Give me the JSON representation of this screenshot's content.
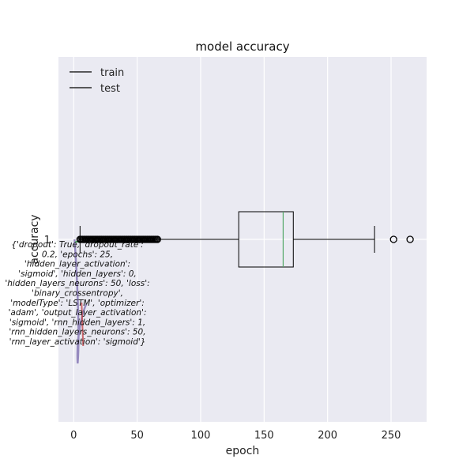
{
  "chart_data": {
    "type": "boxplot",
    "title": "model accuracy",
    "xlabel": "epoch",
    "ylabel": "accuracy",
    "xlim": [
      -12,
      278
    ],
    "xticks": [
      0,
      50,
      100,
      150,
      200,
      250
    ],
    "yticks": [
      1
    ],
    "grid": true,
    "legend": {
      "placement": "top-left",
      "entries": [
        "train",
        "test"
      ]
    },
    "box": {
      "category": 1,
      "whisker_low": 5,
      "q1": 130,
      "median": 165,
      "q3": 173,
      "whisker_high": 237,
      "outliers_high": [
        252,
        265
      ],
      "outliers_low_range": [
        5,
        66
      ]
    },
    "colors": {
      "background": "#eaeaf2",
      "grid": "#ffffff",
      "box": "#000000",
      "median": "#55a868",
      "train": "#4c72b0",
      "test": "#c44e52",
      "purple": "#8172b2"
    },
    "annotation_lines": [
      "{'dropout': True, 'dropout_rate':",
      "0.2, 'epochs': 25,",
      "'hidden_layer_activation':",
      "'sigmoid', 'hidden_layers': 0,",
      "'hidden_layers_neurons': 50, 'loss':",
      "'binary_crossentropy',",
      "'modelType': 'LSTM', 'optimizer':",
      "'adam', 'output_layer_activation':",
      "'sigmoid', 'rnn_hidden_layers': 1,",
      "'rnn_hidden_layers_neurons': 50,",
      "'rnn_layer_activation': 'sigmoid'}"
    ]
  }
}
